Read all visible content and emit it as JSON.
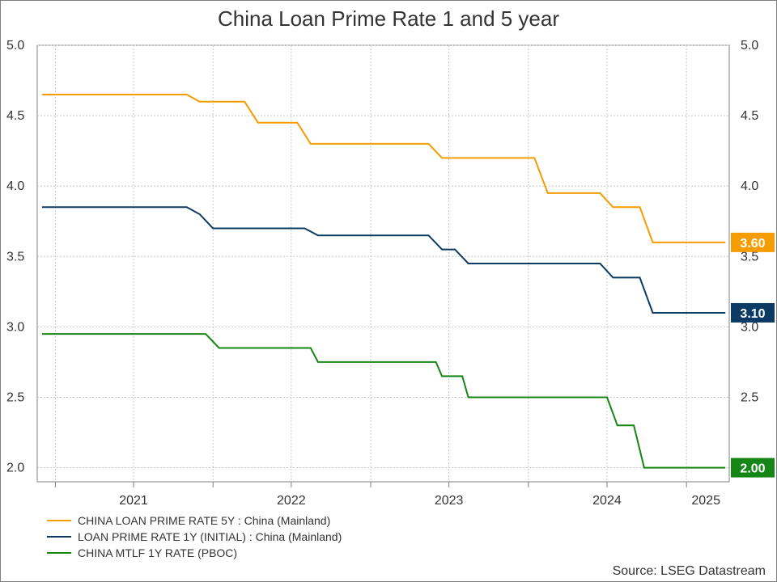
{
  "chart_data": {
    "type": "line",
    "title": "China Loan Prime Rate 1 and 5 year",
    "source": "Source: LSEG Datastream",
    "ylim": [
      1.9,
      5.0
    ],
    "xlim": [
      "2020-11-20",
      "2025-04-10"
    ],
    "y_ticks": [
      "5.0",
      "4.5",
      "4.0",
      "3.5",
      "3.0",
      "2.5",
      "2.0"
    ],
    "x_ticks": [
      "2021",
      "2022",
      "2023",
      "2024",
      "2025"
    ],
    "grid": true,
    "legend_position": "bottom-left",
    "series": [
      {
        "name": "CHINA LOAN PRIME RATE 5Y : China (Mainland)",
        "color": "#f59c00",
        "end_label": "3.60",
        "points": [
          [
            "2020-12-01",
            4.65
          ],
          [
            "2021-11-01",
            4.65
          ],
          [
            "2021-12-01",
            4.6
          ],
          [
            "2022-03-15",
            4.6
          ],
          [
            "2022-04-15",
            4.45
          ],
          [
            "2022-07-15",
            4.45
          ],
          [
            "2022-08-15",
            4.3
          ],
          [
            "2023-05-15",
            4.3
          ],
          [
            "2023-06-15",
            4.2
          ],
          [
            "2024-01-15",
            4.2
          ],
          [
            "2024-02-15",
            3.95
          ],
          [
            "2024-06-15",
            3.95
          ],
          [
            "2024-07-15",
            3.85
          ],
          [
            "2024-09-15",
            3.85
          ],
          [
            "2024-10-15",
            3.6
          ],
          [
            "2025-04-01",
            3.6
          ]
        ]
      },
      {
        "name": "LOAN PRIME RATE 1Y (INITIAL) : China (Mainland)",
        "color": "#0b3b64",
        "end_label": "3.10",
        "points": [
          [
            "2020-12-01",
            3.85
          ],
          [
            "2021-11-01",
            3.85
          ],
          [
            "2021-12-01",
            3.8
          ],
          [
            "2022-01-01",
            3.7
          ],
          [
            "2022-08-01",
            3.7
          ],
          [
            "2022-09-01",
            3.65
          ],
          [
            "2023-05-15",
            3.65
          ],
          [
            "2023-06-15",
            3.55
          ],
          [
            "2023-07-15",
            3.55
          ],
          [
            "2023-08-15",
            3.45
          ],
          [
            "2024-06-15",
            3.45
          ],
          [
            "2024-07-15",
            3.35
          ],
          [
            "2024-09-15",
            3.35
          ],
          [
            "2024-10-15",
            3.1
          ],
          [
            "2025-04-01",
            3.1
          ]
        ]
      },
      {
        "name": "CHINA MTLF 1Y RATE (PBOC)",
        "color": "#158515",
        "end_label": "2.00",
        "points": [
          [
            "2020-12-01",
            2.95
          ],
          [
            "2021-12-15",
            2.95
          ],
          [
            "2022-01-15",
            2.85
          ],
          [
            "2022-08-15",
            2.85
          ],
          [
            "2022-09-01",
            2.75
          ],
          [
            "2023-06-01",
            2.75
          ],
          [
            "2023-06-15",
            2.65
          ],
          [
            "2023-08-01",
            2.65
          ],
          [
            "2023-08-15",
            2.5
          ],
          [
            "2024-07-01",
            2.5
          ],
          [
            "2024-07-25",
            2.3
          ],
          [
            "2024-09-01",
            2.3
          ],
          [
            "2024-09-25",
            2.0
          ],
          [
            "2025-04-01",
            2.0
          ]
        ]
      }
    ]
  }
}
